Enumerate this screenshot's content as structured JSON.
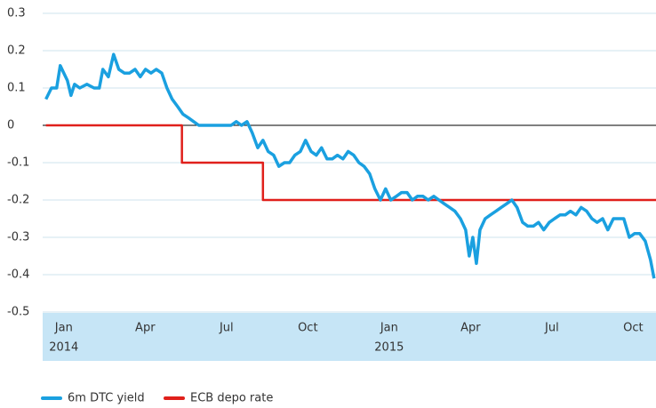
{
  "chart_data": {
    "type": "line",
    "xlim": [
      2013.935,
      2015.82
    ],
    "ylim": [
      -0.5,
      0.3
    ],
    "yticks": [
      0.3,
      0.2,
      0.1,
      0,
      -0.1,
      -0.2,
      -0.3,
      -0.4,
      -0.5
    ],
    "xticks": [
      {
        "value": 2014.0,
        "label": "Jan"
      },
      {
        "value": 2014.25,
        "label": "Apr"
      },
      {
        "value": 2014.5,
        "label": "Jul"
      },
      {
        "value": 2014.75,
        "label": "Oct"
      },
      {
        "value": 2015.0,
        "label": "Jan"
      },
      {
        "value": 2015.25,
        "label": "Apr"
      },
      {
        "value": 2015.5,
        "label": "Jul"
      },
      {
        "value": 2015.75,
        "label": "Oct"
      }
    ],
    "year_ticks": [
      {
        "value": 2014.0,
        "label": "2014"
      },
      {
        "value": 2015.0,
        "label": "2015"
      }
    ],
    "grid": true,
    "series": [
      {
        "name": "6m DTC yield",
        "color": "#1aa0e0",
        "x": [
          2013.945,
          2013.962,
          2013.978,
          2013.989,
          2014.0,
          2014.011,
          2014.022,
          2014.033,
          2014.049,
          2014.071,
          2014.093,
          2014.109,
          2014.12,
          2014.137,
          2014.153,
          2014.169,
          2014.186,
          2014.202,
          2014.219,
          2014.235,
          2014.251,
          2014.268,
          2014.284,
          2014.301,
          2014.317,
          2014.333,
          2014.35,
          2014.366,
          2014.383,
          2014.399,
          2014.415,
          2014.432,
          2014.448,
          2014.464,
          2014.481,
          2014.497,
          2014.514,
          2014.53,
          2014.546,
          2014.563,
          2014.579,
          2014.596,
          2014.612,
          2014.628,
          2014.645,
          2014.661,
          2014.678,
          2014.694,
          2014.71,
          2014.727,
          2014.743,
          2014.76,
          2014.776,
          2014.792,
          2014.809,
          2014.825,
          2014.841,
          2014.858,
          2014.874,
          2014.891,
          2014.907,
          2014.923,
          2014.94,
          2014.956,
          2014.973,
          2014.989,
          2015.005,
          2015.022,
          2015.038,
          2015.055,
          2015.071,
          2015.087,
          2015.104,
          2015.12,
          2015.137,
          2015.153,
          2015.169,
          2015.186,
          2015.202,
          2015.219,
          2015.235,
          2015.246,
          2015.257,
          2015.268,
          2015.279,
          2015.295,
          2015.311,
          2015.328,
          2015.344,
          2015.361,
          2015.377,
          2015.393,
          2015.41,
          2015.426,
          2015.443,
          2015.459,
          2015.475,
          2015.492,
          2015.508,
          2015.525,
          2015.541,
          2015.557,
          2015.574,
          2015.59,
          2015.607,
          2015.623,
          2015.639,
          2015.656,
          2015.672,
          2015.689,
          2015.705,
          2015.721,
          2015.738,
          2015.754,
          2015.77,
          2015.787,
          2015.803,
          2015.814
        ],
        "values": [
          0.07,
          0.1,
          0.1,
          0.16,
          0.14,
          0.12,
          0.08,
          0.11,
          0.1,
          0.11,
          0.1,
          0.1,
          0.15,
          0.13,
          0.19,
          0.15,
          0.14,
          0.14,
          0.15,
          0.13,
          0.15,
          0.14,
          0.15,
          0.14,
          0.1,
          0.07,
          0.05,
          0.03,
          0.02,
          0.01,
          0.0,
          0.0,
          0.0,
          0.0,
          0.0,
          0.0,
          0.0,
          0.01,
          0.0,
          0.01,
          -0.02,
          -0.06,
          -0.04,
          -0.07,
          -0.08,
          -0.11,
          -0.1,
          -0.1,
          -0.08,
          -0.07,
          -0.04,
          -0.07,
          -0.08,
          -0.06,
          -0.09,
          -0.09,
          -0.08,
          -0.09,
          -0.07,
          -0.08,
          -0.1,
          -0.11,
          -0.13,
          -0.17,
          -0.2,
          -0.17,
          -0.2,
          -0.19,
          -0.18,
          -0.18,
          -0.2,
          -0.19,
          -0.19,
          -0.2,
          -0.19,
          -0.2,
          -0.21,
          -0.22,
          -0.23,
          -0.25,
          -0.28,
          -0.35,
          -0.3,
          -0.37,
          -0.28,
          -0.25,
          -0.24,
          -0.23,
          -0.22,
          -0.21,
          -0.2,
          -0.22,
          -0.26,
          -0.27,
          -0.27,
          -0.26,
          -0.28,
          -0.26,
          -0.25,
          -0.24,
          -0.24,
          -0.23,
          -0.24,
          -0.22,
          -0.23,
          -0.25,
          -0.26,
          -0.25,
          -0.28,
          -0.25,
          -0.25,
          -0.25,
          -0.3,
          -0.29,
          -0.29,
          -0.31,
          -0.36,
          -0.41
        ]
      },
      {
        "name": "ECB depo rate",
        "color": "#e0201b",
        "step": true,
        "x": [
          2013.945,
          2014.363,
          2014.612,
          2015.82
        ],
        "values": [
          0,
          -0.1,
          -0.2,
          -0.2
        ]
      }
    ]
  }
}
